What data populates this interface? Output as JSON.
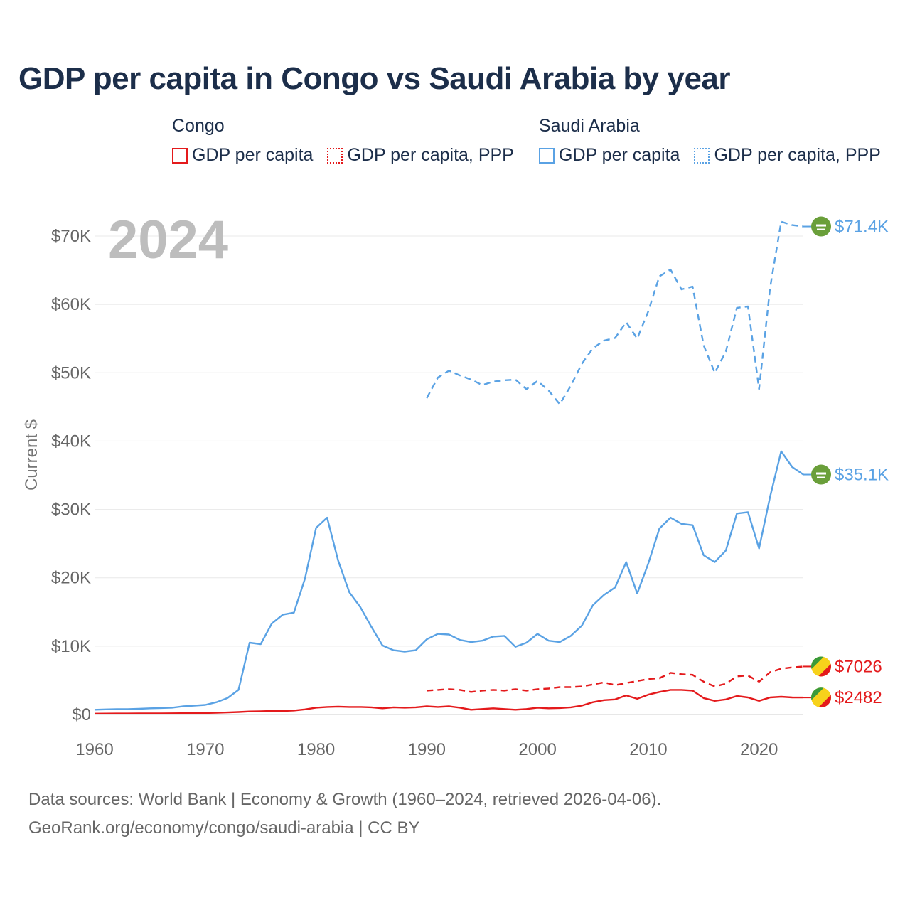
{
  "chart_data": {
    "type": "line",
    "title": "GDP per capita in Congo vs Saudi Arabia by year",
    "ylabel": "Current $",
    "xlabel": "",
    "xlim": [
      1960,
      2024
    ],
    "ylim": [
      0,
      72000
    ],
    "year_label": "2024",
    "x_ticks": [
      1960,
      1970,
      1980,
      1990,
      2000,
      2010,
      2020
    ],
    "y_ticks": [
      {
        "value": 0,
        "label": "$0"
      },
      {
        "value": 10000,
        "label": "$10K"
      },
      {
        "value": 20000,
        "label": "$20K"
      },
      {
        "value": 30000,
        "label": "$30K"
      },
      {
        "value": 40000,
        "label": "$40K"
      },
      {
        "value": 50000,
        "label": "$50K"
      },
      {
        "value": 60000,
        "label": "$60K"
      },
      {
        "value": 70000,
        "label": "$70K"
      }
    ],
    "legend": {
      "groups": [
        {
          "name": "Congo",
          "items": [
            "GDP per capita",
            "GDP per capita, PPP"
          ]
        },
        {
          "name": "Saudi Arabia",
          "items": [
            "GDP per capita",
            "GDP per capita, PPP"
          ]
        }
      ]
    },
    "series": [
      {
        "name": "Saudi Arabia GDP per capita, PPP",
        "country": "Saudi Arabia",
        "color": "#5aa2e4",
        "dash": "dashed",
        "end_label": "$71.4K",
        "x": [
          1990,
          1991,
          1992,
          1993,
          1994,
          1995,
          1996,
          1997,
          1998,
          1999,
          2000,
          2001,
          2002,
          2003,
          2004,
          2005,
          2006,
          2007,
          2008,
          2009,
          2010,
          2011,
          2012,
          2013,
          2014,
          2015,
          2016,
          2017,
          2018,
          2019,
          2020,
          2021,
          2022,
          2023,
          2024
        ],
        "y": [
          46300,
          49300,
          50300,
          49600,
          49000,
          48200,
          48700,
          48900,
          49000,
          47600,
          48800,
          47400,
          45400,
          48100,
          51300,
          53600,
          54700,
          55100,
          57400,
          55000,
          59000,
          64100,
          65100,
          62200,
          62600,
          54000,
          50000,
          53100,
          59500,
          59700,
          47600,
          62500,
          72100,
          71600,
          71400
        ]
      },
      {
        "name": "Saudi Arabia GDP per capita",
        "country": "Saudi Arabia",
        "color": "#5aa2e4",
        "dash": "solid",
        "end_label": "$35.1K",
        "x": [
          1960,
          1961,
          1962,
          1963,
          1964,
          1965,
          1966,
          1967,
          1968,
          1969,
          1970,
          1971,
          1972,
          1973,
          1974,
          1975,
          1976,
          1977,
          1978,
          1979,
          1980,
          1981,
          1982,
          1983,
          1984,
          1985,
          1986,
          1987,
          1988,
          1989,
          1990,
          1991,
          1992,
          1993,
          1994,
          1995,
          1996,
          1997,
          1998,
          1999,
          2000,
          2001,
          2002,
          2003,
          2004,
          2005,
          2006,
          2007,
          2008,
          2009,
          2010,
          2011,
          2012,
          2013,
          2014,
          2015,
          2016,
          2017,
          2018,
          2019,
          2020,
          2021,
          2022,
          2023,
          2024
        ],
        "y": [
          700,
          750,
          780,
          790,
          830,
          900,
          950,
          1000,
          1200,
          1300,
          1400,
          1800,
          2400,
          3600,
          10500,
          10300,
          13300,
          14600,
          14900,
          19900,
          27300,
          28800,
          22500,
          17900,
          15700,
          12800,
          10100,
          9400,
          9200,
          9400,
          11000,
          11800,
          11700,
          10900,
          10600,
          10800,
          11400,
          11500,
          9900,
          10500,
          11800,
          10800,
          10600,
          11500,
          13000,
          16000,
          17500,
          18600,
          22300,
          17700,
          22100,
          27200,
          28800,
          27900,
          27700,
          23300,
          22300,
          24000,
          29400,
          29600,
          24300,
          31900,
          38500,
          36200,
          35100
        ]
      },
      {
        "name": "Congo GDP per capita, PPP",
        "country": "Congo",
        "color": "#e41a1c",
        "dash": "dashed",
        "end_label": "$7026",
        "x": [
          1990,
          1991,
          1992,
          1993,
          1994,
          1995,
          1996,
          1997,
          1998,
          1999,
          2000,
          2001,
          2002,
          2003,
          2004,
          2005,
          2006,
          2007,
          2008,
          2009,
          2010,
          2011,
          2012,
          2013,
          2014,
          2015,
          2016,
          2017,
          2018,
          2019,
          2020,
          2021,
          2022,
          2023,
          2024
        ],
        "y": [
          3500,
          3600,
          3700,
          3600,
          3300,
          3500,
          3600,
          3500,
          3700,
          3500,
          3700,
          3800,
          4000,
          4000,
          4100,
          4400,
          4700,
          4300,
          4600,
          4900,
          5200,
          5300,
          6100,
          5900,
          5800,
          4800,
          4100,
          4500,
          5600,
          5700,
          4800,
          6200,
          6700,
          6900,
          7026
        ]
      },
      {
        "name": "Congo GDP per capita",
        "country": "Congo",
        "color": "#e41a1c",
        "dash": "solid",
        "end_label": "$2482",
        "x": [
          1960,
          1961,
          1962,
          1963,
          1964,
          1965,
          1966,
          1967,
          1968,
          1969,
          1970,
          1971,
          1972,
          1973,
          1974,
          1975,
          1976,
          1977,
          1978,
          1979,
          1980,
          1981,
          1982,
          1983,
          1984,
          1985,
          1986,
          1987,
          1988,
          1989,
          1990,
          1991,
          1992,
          1993,
          1994,
          1995,
          1996,
          1997,
          1998,
          1999,
          2000,
          2001,
          2002,
          2003,
          2004,
          2005,
          2006,
          2007,
          2008,
          2009,
          2010,
          2011,
          2012,
          2013,
          2014,
          2015,
          2016,
          2017,
          2018,
          2019,
          2020,
          2021,
          2022,
          2023,
          2024
        ],
        "y": [
          130,
          140,
          145,
          150,
          155,
          160,
          170,
          180,
          190,
          200,
          220,
          250,
          300,
          360,
          450,
          480,
          520,
          520,
          580,
          750,
          1000,
          1100,
          1150,
          1100,
          1100,
          1050,
          900,
          1050,
          1000,
          1050,
          1200,
          1100,
          1200,
          1000,
          700,
          800,
          900,
          800,
          700,
          800,
          1000,
          900,
          950,
          1050,
          1300,
          1800,
          2100,
          2200,
          2800,
          2300,
          2900,
          3300,
          3600,
          3600,
          3500,
          2400,
          2000,
          2200,
          2700,
          2500,
          2000,
          2500,
          2600,
          2500,
          2482
        ]
      }
    ]
  },
  "source": {
    "line1": "Data sources: World Bank | Economy & Growth (1960–2024, retrieved 2026-04-06).",
    "line2": "GeoRank.org/economy/congo/saudi-arabia | CC BY"
  },
  "colors": {
    "congo": "#e41a1c",
    "saudi": "#5aa2e4",
    "saudi_flag_green": "#6a9f3a",
    "congo_flag_green": "#3a9a3a",
    "congo_flag_yellow": "#f7d21b",
    "congo_flag_red": "#e41a1c"
  }
}
